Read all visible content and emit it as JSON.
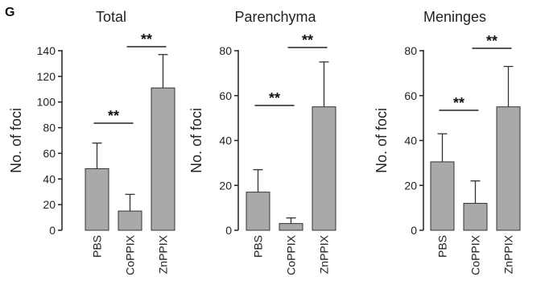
{
  "panel_label": "G",
  "chart_data": [
    {
      "type": "bar",
      "title": "Total",
      "ylabel": "No. of foci",
      "xlabel": "",
      "categories": [
        "PBS",
        "CoPPIX",
        "ZnPPIX"
      ],
      "values": [
        48,
        15,
        111
      ],
      "errors": [
        20,
        13,
        26
      ],
      "ylim": [
        0,
        140
      ],
      "yticks": [
        0,
        20,
        40,
        60,
        80,
        100,
        120,
        140
      ],
      "bar_color": "#a9a9a9",
      "significance": [
        {
          "from": 0,
          "to": 1,
          "label": "**",
          "level": 153
        },
        {
          "from": 1,
          "to": 2,
          "label": "**",
          "level": 58
        }
      ]
    },
    {
      "type": "bar",
      "title": "Parenchyma",
      "ylabel": "No. of foci",
      "xlabel": "",
      "categories": [
        "PBS",
        "CoPPIX",
        "ZnPPIX"
      ],
      "values": [
        17,
        3,
        55
      ],
      "errors": [
        10,
        2.5,
        20
      ],
      "ylim": [
        0,
        80
      ],
      "yticks": [
        0,
        20,
        40,
        60,
        80
      ],
      "bar_color": "#a9a9a9",
      "significance": [
        {
          "from": 0,
          "to": 1,
          "label": "**",
          "level": 131
        },
        {
          "from": 1,
          "to": 2,
          "label": "**",
          "level": 59
        }
      ]
    },
    {
      "type": "bar",
      "title": "Meninges",
      "ylabel": "No. of foci",
      "xlabel": "",
      "categories": [
        "PBS",
        "CoPPIX",
        "ZnPPIX"
      ],
      "values": [
        30.5,
        12,
        55
      ],
      "errors": [
        12.5,
        10,
        18
      ],
      "ylim": [
        0,
        80
      ],
      "yticks": [
        0,
        20,
        40,
        60,
        80
      ],
      "bar_color": "#a9a9a9",
      "significance": [
        {
          "from": 0,
          "to": 1,
          "label": "**",
          "level": 137
        },
        {
          "from": 1,
          "to": 2,
          "label": "**",
          "level": 60
        }
      ]
    }
  ]
}
